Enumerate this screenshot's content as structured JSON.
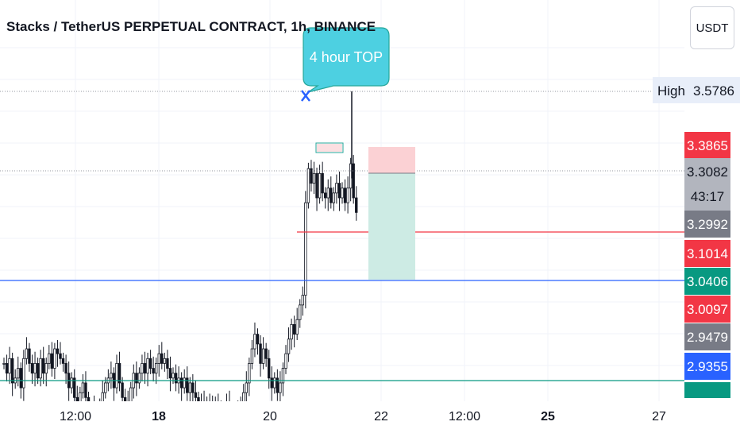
{
  "header": {
    "title": "Stacks / TetherUS PERPETUAL CONTRACT, 1h, BINANCE",
    "currency_button": "USDT"
  },
  "annotation": {
    "text": "4 hour TOP",
    "marker": "x-icon"
  },
  "high_label": {
    "label": "High",
    "value": "3.5786"
  },
  "price_labels": [
    {
      "value": "3.3865",
      "color": "#f23645"
    },
    {
      "value": "3.3082",
      "sub": "43:17",
      "color": "#b2b5be"
    },
    {
      "value": "3.2992",
      "color": "#787b86"
    },
    {
      "value": "3.1014",
      "color": "#f23645"
    },
    {
      "value": "3.0406",
      "color": "#089981"
    },
    {
      "value": "3.0097",
      "color": "#f23645"
    },
    {
      "value": "2.9479",
      "color": "#787b86"
    },
    {
      "value": "2.9355",
      "color": "#2962ff"
    }
  ],
  "colors": {
    "candle": "#131722",
    "red_line": "#f23645",
    "blue_line": "#2962ff",
    "green_line": "#089981",
    "stop_zone": "#fbd1d4",
    "target_zone": "#cdebe4",
    "annotation_fill": "#4dd0e1",
    "annotation_border": "#26a69a"
  },
  "chart_data": {
    "type": "candlestick",
    "x_ticks": [
      {
        "label": "12:00",
        "bold": false
      },
      {
        "label": "18",
        "bold": true
      },
      {
        "label": "20",
        "bold": false
      },
      {
        "label": "22",
        "bold": false
      },
      {
        "label": "12:00",
        "bold": false
      },
      {
        "label": "25",
        "bold": true
      },
      {
        "label": "27",
        "bold": false
      }
    ],
    "ylim": [
      2.88,
      3.66
    ],
    "horizontal_lines": [
      {
        "price": 3.1014,
        "color": "#f23645"
      },
      {
        "price": 3.0406,
        "color": "#2962ff"
      },
      {
        "price": 2.9355,
        "color": "#089981"
      }
    ],
    "dotted_lines": [
      3.5786,
      3.3082
    ],
    "position": {
      "entry": 3.3082,
      "stop": 3.3865,
      "target": 3.0406
    },
    "close_series": [
      3.02,
      3.0,
      3.03,
      2.98,
      2.99,
      3.01,
      2.97,
      3.03,
      3.05,
      3.02,
      3.0,
      3.02,
      2.99,
      3.03,
      3.0,
      3.02,
      3.04,
      3.01,
      3.05,
      3.04,
      3.03,
      3.02,
      3.0,
      2.97,
      2.99,
      2.95,
      2.93,
      2.96,
      2.98,
      2.95,
      2.92,
      2.9,
      2.93,
      2.91,
      2.93,
      2.96,
      2.98,
      2.99,
      3.0,
      2.97,
      3.02,
      2.98,
      2.95,
      2.92,
      2.94,
      2.97,
      3.0,
      2.98,
      3.0,
      3.02,
      3.0,
      3.03,
      3.01,
      3.0,
      3.02,
      3.04,
      3.02,
      3.03,
      3.01,
      2.99,
      3.0,
      2.98,
      2.99,
      2.97,
      2.99,
      2.96,
      2.98,
      2.96,
      2.95,
      2.93,
      2.94,
      2.92,
      2.94,
      2.93,
      2.91,
      2.94,
      2.92,
      2.9,
      2.92,
      2.94,
      2.92,
      2.91,
      2.89,
      2.92,
      2.94,
      2.96,
      2.98,
      3.02,
      3.05,
      3.08,
      3.06,
      3.02,
      3.05,
      3.03,
      2.99,
      2.97,
      2.99,
      2.96,
      2.98,
      3.01,
      3.04,
      3.07,
      3.1,
      3.08,
      3.11,
      3.14,
      3.16,
      3.35,
      3.42,
      3.39,
      3.41,
      3.36,
      3.41,
      3.37,
      3.36,
      3.38,
      3.35,
      3.37,
      3.39,
      3.36,
      3.38,
      3.35,
      3.38,
      3.43,
      3.36,
      3.33
    ]
  }
}
